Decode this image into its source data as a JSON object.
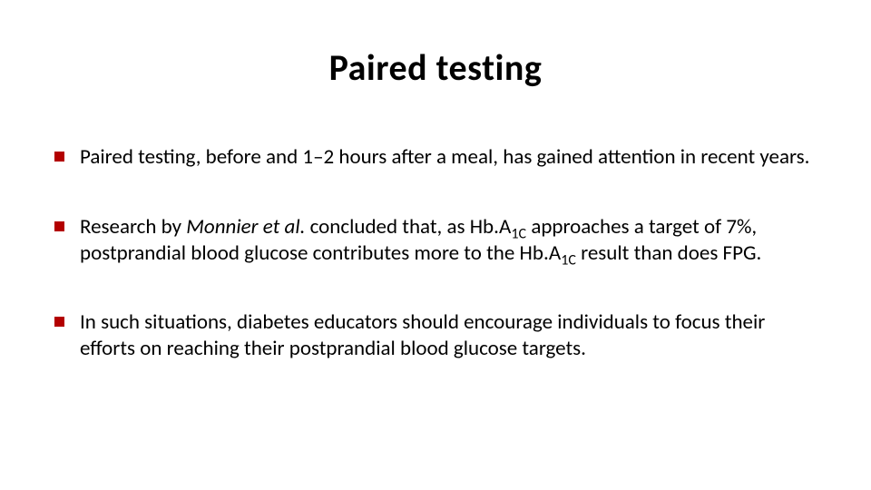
{
  "slide": {
    "title": "Paired testing",
    "title_fontsize": 40,
    "title_color": "#000000",
    "background_color": "#ffffff",
    "bullet_marker_color": "#b30000",
    "bullet_marker_size": 11,
    "body_fontsize": 23,
    "body_color": "#000000",
    "bullets": [
      {
        "runs": [
          {
            "text": "Paired testing, before and 1–2 hours after a meal, has gained attention in recent years."
          }
        ]
      },
      {
        "runs": [
          {
            "text": "Research by "
          },
          {
            "text": "Monnier et al.",
            "italic": true
          },
          {
            "text": " concluded that, as Hb.A"
          },
          {
            "text": "1C",
            "sub": true
          },
          {
            "text": " approaches a target of 7%, postprandial blood glucose contributes more to the Hb.A"
          },
          {
            "text": "1C",
            "sub": true
          },
          {
            "text": " result than does FPG."
          }
        ]
      },
      {
        "runs": [
          {
            "text": "In such situations, diabetes educators should encourage individuals to focus their efforts on reaching their postprandial blood glucose targets."
          }
        ]
      }
    ]
  }
}
